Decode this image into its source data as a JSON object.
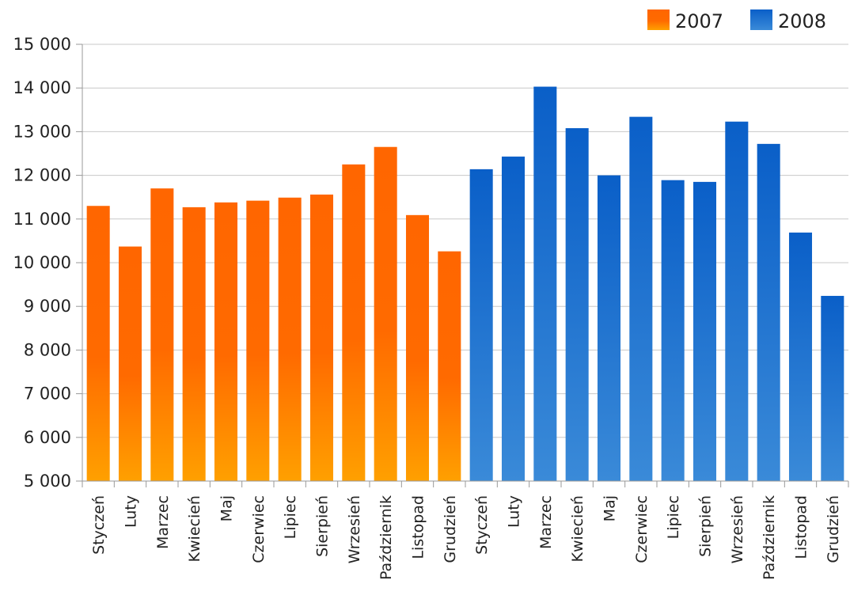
{
  "chart_data": {
    "type": "bar",
    "categories": [
      "Styczeń",
      "Luty",
      "Marzec",
      "Kwiecień",
      "Maj",
      "Czerwiec",
      "Lipiec",
      "Sierpień",
      "Wrzesień",
      "Październik",
      "Listopad",
      "Grudzień",
      "Styczeń",
      "Luty",
      "Marzec",
      "Kwiecień",
      "Maj",
      "Czerwiec",
      "Lipiec",
      "Sierpień",
      "Wrzesień",
      "Październik",
      "Listopad",
      "Grudzień"
    ],
    "series": [
      {
        "name": "2007",
        "color": "#ff6600",
        "color_light": "#ffa000",
        "values": [
          11300,
          10370,
          11700,
          11270,
          11380,
          11420,
          11490,
          11560,
          12250,
          12650,
          11090,
          10260,
          null,
          null,
          null,
          null,
          null,
          null,
          null,
          null,
          null,
          null,
          null,
          null
        ]
      },
      {
        "name": "2008",
        "color": "#0a5fc8",
        "color_light": "#3a8ad8",
        "values": [
          null,
          null,
          null,
          null,
          null,
          null,
          null,
          null,
          null,
          null,
          null,
          null,
          12140,
          12430,
          14030,
          13080,
          12000,
          13340,
          11890,
          11850,
          13230,
          12720,
          10690,
          9240
        ]
      }
    ],
    "yticks": [
      "5 000",
      "6 000",
      "7 000",
      "8 000",
      "9 000",
      "10 000",
      "11 000",
      "12 000",
      "13 000",
      "14 000",
      "15 000"
    ],
    "ylim": [
      5000,
      15000
    ],
    "grid": true,
    "legend_position": "top-right",
    "title": "",
    "xlabel": "",
    "ylabel": ""
  }
}
